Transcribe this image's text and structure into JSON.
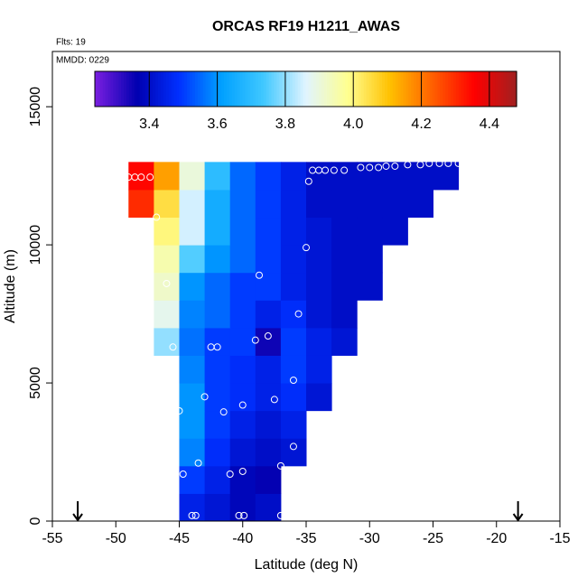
{
  "chart_data": {
    "type": "curtain",
    "title": "ORCAS RF19 H1211_AWAS",
    "subtitle": "Flts: 19",
    "annotation": "MMDD: 0229",
    "x_label": "Latitude (deg N)",
    "y_label": "Altitude (m)",
    "xlim": [
      -55,
      -15
    ],
    "xticks": [
      -55,
      -50,
      -45,
      -40,
      -35,
      -30,
      -25,
      -20,
      -15
    ],
    "ylim": [
      0,
      17000
    ],
    "yticks": [
      0,
      5000,
      10000,
      15000
    ],
    "x_edges": [
      -49,
      -47,
      -45,
      -43,
      -41,
      -39,
      -37,
      -35,
      -33,
      -31,
      -29,
      -27,
      -25,
      -23,
      -21
    ],
    "y_edges": [
      0,
      1000,
      2000,
      3000,
      4000,
      5000,
      6000,
      7000,
      8000,
      9000,
      10000,
      11000,
      12000,
      13000
    ],
    "values": [
      [
        null,
        null,
        3.45,
        3.42,
        3.38,
        3.4,
        null,
        null,
        null,
        null,
        null,
        null,
        null,
        null
      ],
      [
        null,
        null,
        3.5,
        3.45,
        3.38,
        3.36,
        null,
        null,
        null,
        null,
        null,
        null,
        null,
        null
      ],
      [
        null,
        null,
        3.58,
        3.48,
        3.42,
        3.4,
        3.42,
        null,
        null,
        null,
        null,
        null,
        null,
        null
      ],
      [
        null,
        null,
        3.6,
        3.5,
        3.45,
        3.42,
        3.45,
        null,
        null,
        null,
        null,
        null,
        null,
        null
      ],
      [
        null,
        null,
        3.6,
        3.5,
        3.48,
        3.45,
        3.48,
        3.42,
        null,
        null,
        null,
        null,
        null,
        null
      ],
      [
        null,
        null,
        3.58,
        3.5,
        3.48,
        3.45,
        3.5,
        3.45,
        null,
        null,
        null,
        null,
        null,
        null
      ],
      [
        null,
        3.8,
        3.56,
        3.5,
        3.5,
        3.35,
        3.5,
        3.45,
        3.42,
        null,
        null,
        null,
        null,
        null
      ],
      [
        null,
        3.88,
        3.58,
        3.55,
        3.5,
        3.45,
        3.48,
        3.42,
        3.4,
        null,
        null,
        null,
        null,
        null
      ],
      [
        null,
        3.92,
        3.6,
        3.55,
        3.5,
        3.5,
        3.45,
        3.42,
        3.4,
        3.4,
        null,
        null,
        null,
        null
      ],
      [
        null,
        3.95,
        3.75,
        3.6,
        3.55,
        3.5,
        3.45,
        3.42,
        3.4,
        3.4,
        null,
        null,
        null,
        null
      ],
      [
        null,
        4.0,
        3.85,
        3.65,
        3.55,
        3.5,
        3.45,
        3.42,
        3.4,
        3.4,
        3.4,
        null,
        null,
        null
      ],
      [
        4.3,
        4.05,
        3.85,
        3.65,
        3.55,
        3.5,
        3.45,
        3.4,
        3.4,
        3.4,
        3.4,
        3.4,
        null,
        null
      ],
      [
        4.35,
        4.15,
        3.9,
        3.7,
        3.55,
        3.5,
        3.45,
        3.4,
        3.4,
        3.4,
        3.4,
        3.4,
        3.4,
        null
      ]
    ],
    "points": {
      "x": [
        -49,
        -48.5,
        -48,
        -47.3,
        -46.8,
        -46,
        -45.5,
        -42.5,
        -42,
        -39,
        -38,
        -38.7,
        -35.6,
        -35,
        -34.8,
        -34.5,
        -34,
        -33.5,
        -32.8,
        -32,
        -30.7,
        -30,
        -29.3,
        -28.7,
        -28,
        -27,
        -26,
        -25.3,
        -24.5,
        -23.8,
        -23,
        -22.3,
        -43,
        -45,
        -41.5,
        -40,
        -37.5,
        -36,
        -36,
        -37,
        -40,
        -41,
        -43.5,
        -44.7,
        -44,
        -43.7,
        -40.3,
        -39.9,
        -37
      ],
      "y": [
        12450,
        12450,
        12450,
        12450,
        11000,
        8600,
        6300,
        6300,
        6300,
        6550,
        6700,
        8900,
        7500,
        9900,
        12300,
        12700,
        12700,
        12700,
        12700,
        12700,
        12800,
        12800,
        12800,
        12850,
        12850,
        12900,
        12900,
        12950,
        12950,
        12950,
        12950,
        12950,
        4500,
        3990,
        3950,
        4200,
        4400,
        5100,
        2700,
        2000,
        1800,
        1700,
        2100,
        1700,
        200,
        200,
        200,
        200,
        200
      ]
    },
    "arrows": [
      -53,
      -18.3
    ],
    "color_lim": [
      3.24,
      4.48
    ],
    "colors": [
      "#7b1fe0",
      "#0000b0",
      "#0030ff",
      "#00a0ff",
      "#40c8ff",
      "#e0f4ff",
      "#ffff90",
      "#ffc000",
      "#ff6000",
      "#ff0000",
      "#a02020"
    ],
    "color_ticks": [
      3.4,
      3.6,
      3.8,
      {
        "value": 4,
        "label": "4.0"
      },
      4.2,
      4.4
    ]
  }
}
